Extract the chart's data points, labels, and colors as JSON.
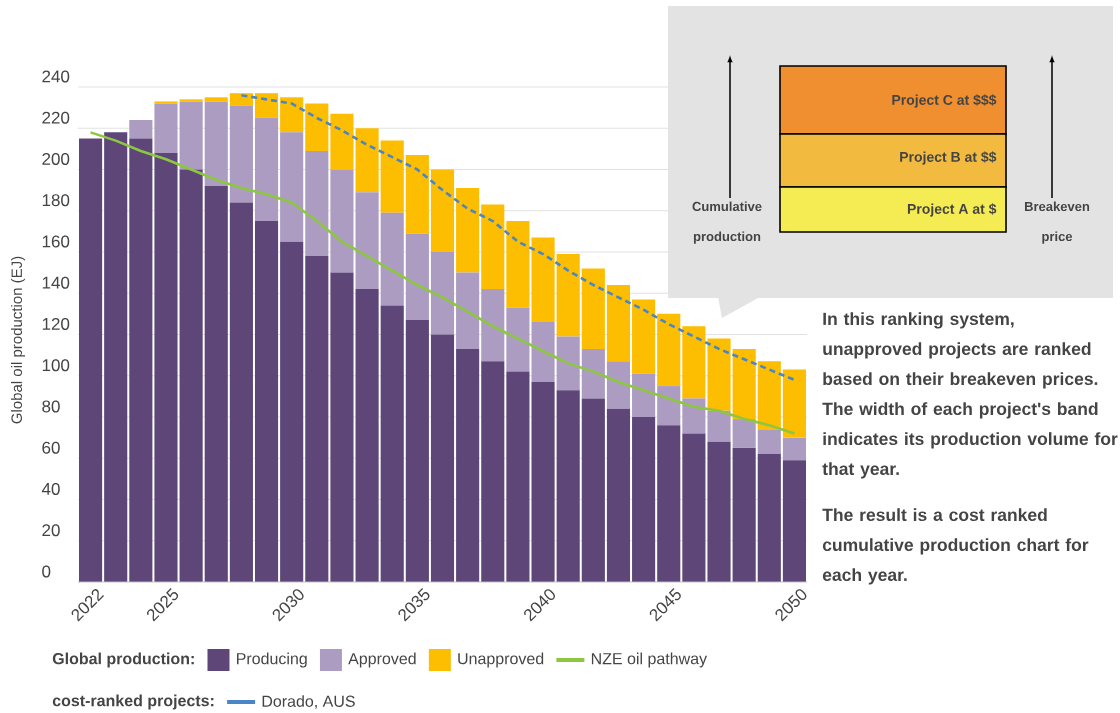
{
  "chart_data": {
    "type": "bar",
    "stacked": true,
    "ylabel": "Global oil production (EJ)",
    "categories": [
      "2022",
      null,
      null,
      "2025",
      null,
      null,
      null,
      null,
      "2030",
      null,
      null,
      null,
      null,
      "2035",
      null,
      null,
      null,
      null,
      "2040",
      null,
      null,
      null,
      null,
      "2045",
      null,
      null,
      null,
      null,
      "2050"
    ],
    "series": [
      {
        "name": "Producing",
        "color": "#5e4778",
        "values": [
          215,
          218,
          215,
          208,
          200,
          192,
          184,
          175,
          165,
          158,
          150,
          142,
          134,
          127,
          120,
          113,
          107,
          102,
          97,
          93,
          89,
          84,
          80,
          76,
          72,
          68,
          65,
          62,
          59
        ]
      },
      {
        "name": "Approved",
        "color": "#ac9cc2",
        "values": [
          0,
          0,
          9,
          24,
          33,
          41,
          47,
          50,
          53,
          51,
          50,
          47,
          45,
          42,
          40,
          37,
          35,
          31,
          29,
          26,
          24,
          23,
          21,
          19,
          17,
          15,
          14,
          12,
          11
        ]
      },
      {
        "name": "Unapproved",
        "color": "#fdbd00",
        "values": [
          0,
          0,
          0,
          1,
          1,
          2,
          6,
          12,
          17,
          23,
          27,
          31,
          35,
          38,
          40,
          41,
          41,
          42,
          41,
          40,
          39,
          37,
          36,
          35,
          35,
          35,
          34,
          33,
          33
        ]
      },
      {
        "name": "NZE oil pathway",
        "type": "line",
        "line_style": "solid",
        "color": "#8dc641",
        "values": [
          218,
          214,
          209,
          205,
          200,
          195,
          191,
          188,
          184,
          175,
          165,
          158,
          151,
          144,
          138,
          131,
          124,
          118,
          112,
          106,
          102,
          97,
          93,
          89,
          85,
          83,
          79,
          76,
          72
        ]
      },
      {
        "name": "Dorado, AUS",
        "type": "line",
        "line_style": "dashed",
        "color": "#4a86c5",
        "values": [
          null,
          null,
          null,
          null,
          null,
          null,
          236,
          234,
          232,
          225,
          219,
          212,
          206,
          200,
          190,
          181,
          175,
          165,
          159,
          151,
          144,
          138,
          132,
          125,
          119,
          113,
          108,
          103,
          98
        ]
      }
    ],
    "ylim": [
      0,
      240
    ],
    "yticks": [
      0,
      20,
      40,
      60,
      80,
      100,
      120,
      140,
      160,
      180,
      200,
      220,
      240
    ],
    "grid": "y",
    "legend": "bottom",
    "legend_title": "Global production:",
    "annotations": [
      "Project C at $$$",
      "Project B at $$",
      "Project A at $",
      "Cumulative production",
      "Breakeven price",
      "In this ranking system, unapproved projects are ranked based on their breakeven prices. The width of each project's band indicates its production volume for that year.",
      "The result is a cost ranked cumulative production chart for each year.",
      "cost-ranked projects:"
    ]
  }
}
